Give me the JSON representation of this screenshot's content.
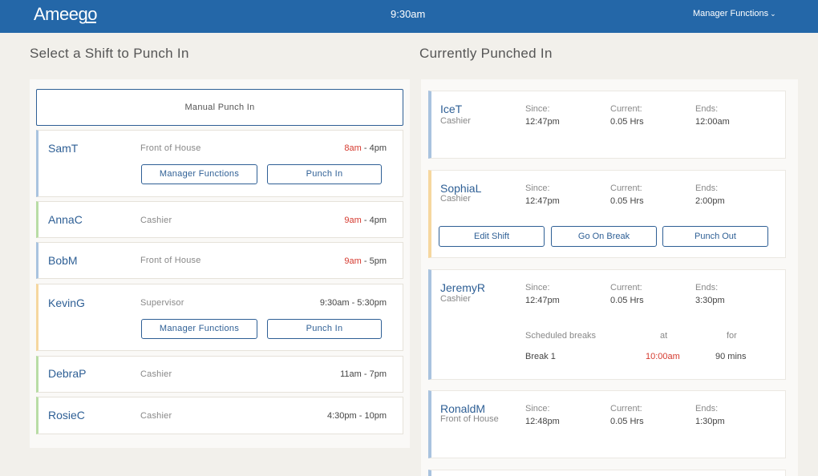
{
  "app": {
    "logo": "Ameego",
    "clock": "9:30am",
    "manager_menu": "Manager Functions"
  },
  "left": {
    "title": "Select a Shift to Punch In",
    "manual_punch": "Manual Punch In",
    "shifts": [
      {
        "name": "SamT",
        "role": "Front of House",
        "start": "8am",
        "end": " - 4pm",
        "late": true,
        "accent": "#a9c3df",
        "btn1": "Manager Functions",
        "btn2": "Punch In"
      },
      {
        "name": "AnnaC",
        "role": "Cashier",
        "start": "9am",
        "end": " - 4pm",
        "late": true,
        "accent": "#b8dca5"
      },
      {
        "name": "BobM",
        "role": "Front of House",
        "start": "9am",
        "end": " - 5pm",
        "late": true,
        "accent": "#a9c3df"
      },
      {
        "name": "KevinG",
        "role": "Supervisor",
        "start": "9:30am",
        "end": " - 5:30pm",
        "late": false,
        "accent": "#f6d79f",
        "btn1": "Manager Functions",
        "btn2": "Punch In"
      },
      {
        "name": "DebraP",
        "role": "Cashier",
        "start": "11am",
        "end": " - 7pm",
        "late": false,
        "accent": "#b8dca5"
      },
      {
        "name": "RosieC",
        "role": "Cashier",
        "start": "4:30pm",
        "end": " - 10pm",
        "late": false,
        "accent": "#b8dca5"
      }
    ]
  },
  "right": {
    "title": "Currently Punched In",
    "labels": {
      "since": "Since:",
      "current": "Current:",
      "ends": "Ends:"
    },
    "punched": [
      {
        "name": "IceT",
        "role": "Cashier",
        "since": "12:47pm",
        "current": "0.05 Hrs",
        "ends": "12:00am",
        "accent": "#a9c3df"
      },
      {
        "name": "SophiaL",
        "role": "Cashier",
        "since": "12:47pm",
        "current": "0.05 Hrs",
        "ends": "2:00pm",
        "accent": "#f6d79f",
        "buttons": [
          "Edit Shift",
          "Go On Break",
          "Punch Out"
        ]
      },
      {
        "name": "JeremyR",
        "role": "Cashier",
        "since": "12:47pm",
        "current": "0.05 Hrs",
        "ends": "3:30pm",
        "accent": "#a9c3df",
        "breaks": {
          "header": "Scheduled breaks",
          "at_label": "at",
          "for_label": "for",
          "name": "Break 1",
          "at": "10:00am",
          "for": "90 mins"
        }
      },
      {
        "name": "RonaldM",
        "role": "Front of House",
        "since": "12:48pm",
        "current": "0.05 Hrs",
        "ends": "1:30pm",
        "accent": "#a9c3df"
      }
    ]
  },
  "colors": {
    "header": "#2467a8",
    "accent_link": "#2e5f95",
    "late_red": "#d53a2f",
    "background": "#f2f0eb"
  }
}
